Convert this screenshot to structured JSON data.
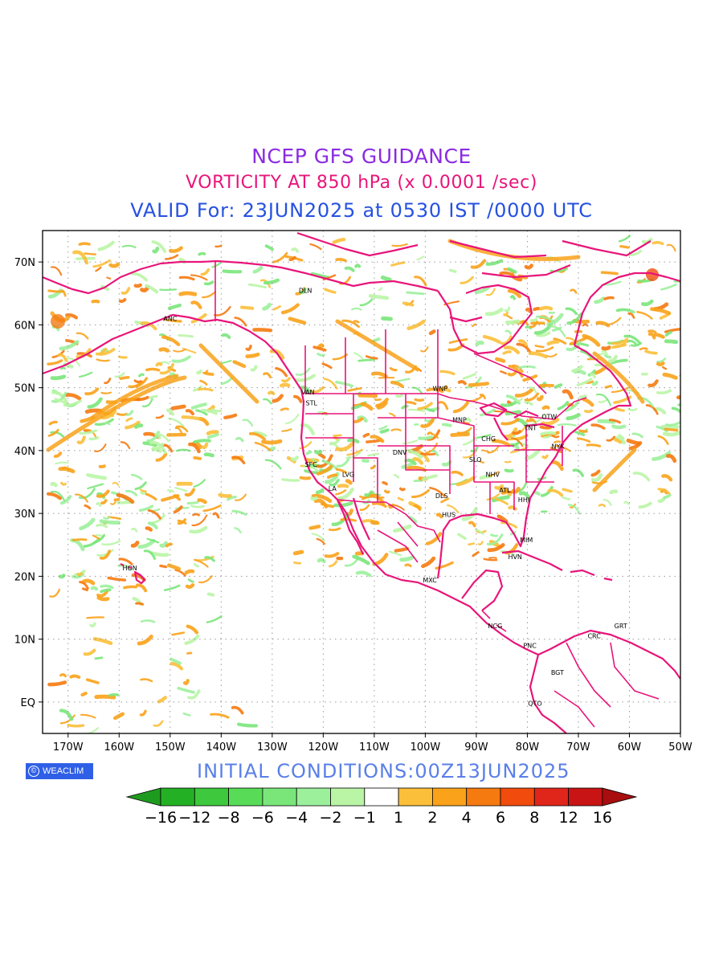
{
  "header": {
    "line1": "NCEP GFS GUIDANCE",
    "line2": "VORTICITY AT 850 hPa (x 0.0001 /sec)",
    "line3": "VALID For: 23JUN2025 at 0530 IST /0000 UTC"
  },
  "map": {
    "lat_labels": [
      "70N",
      "60N",
      "50N",
      "40N",
      "30N",
      "20N",
      "10N",
      "EQ"
    ],
    "lon_labels": [
      "170W",
      "160W",
      "150W",
      "140W",
      "130W",
      "120W",
      "110W",
      "100W",
      "90W",
      "80W",
      "70W",
      "60W",
      "50W"
    ],
    "extent": {
      "lon_min": -175,
      "lon_max": -50,
      "lat_min": -5,
      "lat_max": 75
    },
    "boundary_color": "#e8157a",
    "cities": [
      {
        "code": "DLN",
        "lon": -123.5,
        "lat": 65.5
      },
      {
        "code": "ANC",
        "lon": -150,
        "lat": 61
      },
      {
        "code": "VAN",
        "lon": -123,
        "lat": 49.3
      },
      {
        "code": "STL",
        "lon": -122.3,
        "lat": 47.6
      },
      {
        "code": "WNP",
        "lon": -97.1,
        "lat": 49.9
      },
      {
        "code": "MNP",
        "lon": -93.3,
        "lat": 44.9
      },
      {
        "code": "TNT",
        "lon": -79.4,
        "lat": 43.6
      },
      {
        "code": "OTW",
        "lon": -75.7,
        "lat": 45.4
      },
      {
        "code": "CHG",
        "lon": -87.6,
        "lat": 41.9
      },
      {
        "code": "NYK",
        "lon": -74,
        "lat": 40.7
      },
      {
        "code": "SFC",
        "lon": -122.4,
        "lat": 37.8
      },
      {
        "code": "DNV",
        "lon": -105,
        "lat": 39.7
      },
      {
        "code": "SLO",
        "lon": -90.2,
        "lat": 38.6
      },
      {
        "code": "LVG",
        "lon": -115.1,
        "lat": 36.2
      },
      {
        "code": "NHV",
        "lon": -86.8,
        "lat": 36.2
      },
      {
        "code": "LA",
        "lon": -118.2,
        "lat": 34
      },
      {
        "code": "ATL",
        "lon": -84.4,
        "lat": 33.7
      },
      {
        "code": "DLS",
        "lon": -96.8,
        "lat": 32.8
      },
      {
        "code": "HHI",
        "lon": -80.7,
        "lat": 32.2
      },
      {
        "code": "HUS",
        "lon": -95.4,
        "lat": 29.8
      },
      {
        "code": "MIM",
        "lon": -80.2,
        "lat": 25.8
      },
      {
        "code": "HVN",
        "lon": -82.4,
        "lat": 23.1
      },
      {
        "code": "HON",
        "lon": -157.9,
        "lat": 21.3
      },
      {
        "code": "MXC",
        "lon": -99.1,
        "lat": 19.4
      },
      {
        "code": "NCG",
        "lon": -86.3,
        "lat": 12.1
      },
      {
        "code": "CRC",
        "lon": -66.9,
        "lat": 10.5
      },
      {
        "code": "PNC",
        "lon": -79.5,
        "lat": 9
      },
      {
        "code": "GRT",
        "lon": -61.7,
        "lat": 12.1
      },
      {
        "code": "BGT",
        "lon": -74.1,
        "lat": 4.7
      },
      {
        "code": "QTO",
        "lon": -78.5,
        "lat": -0.2
      }
    ]
  },
  "colorbar": {
    "labels": [
      "−16",
      "−12",
      "−8",
      "−6",
      "−4",
      "−2",
      "−1",
      "1",
      "2",
      "4",
      "6",
      "8",
      "12",
      "16"
    ],
    "colors": [
      "#1e9b1e",
      "#24b024",
      "#3ec83e",
      "#58dc58",
      "#7ae67a",
      "#9cf09c",
      "#baf5a6",
      "#ffffff",
      "#fbbf3a",
      "#f9a21a",
      "#f57a10",
      "#f24b0e",
      "#e0251a",
      "#c81414",
      "#a80e0e"
    ]
  },
  "footer": {
    "logo_text": "WEACLIM",
    "logo_icon": "copyright-icon",
    "initial_conditions": "INITIAL  CONDITIONS:00Z13JUN2025"
  }
}
